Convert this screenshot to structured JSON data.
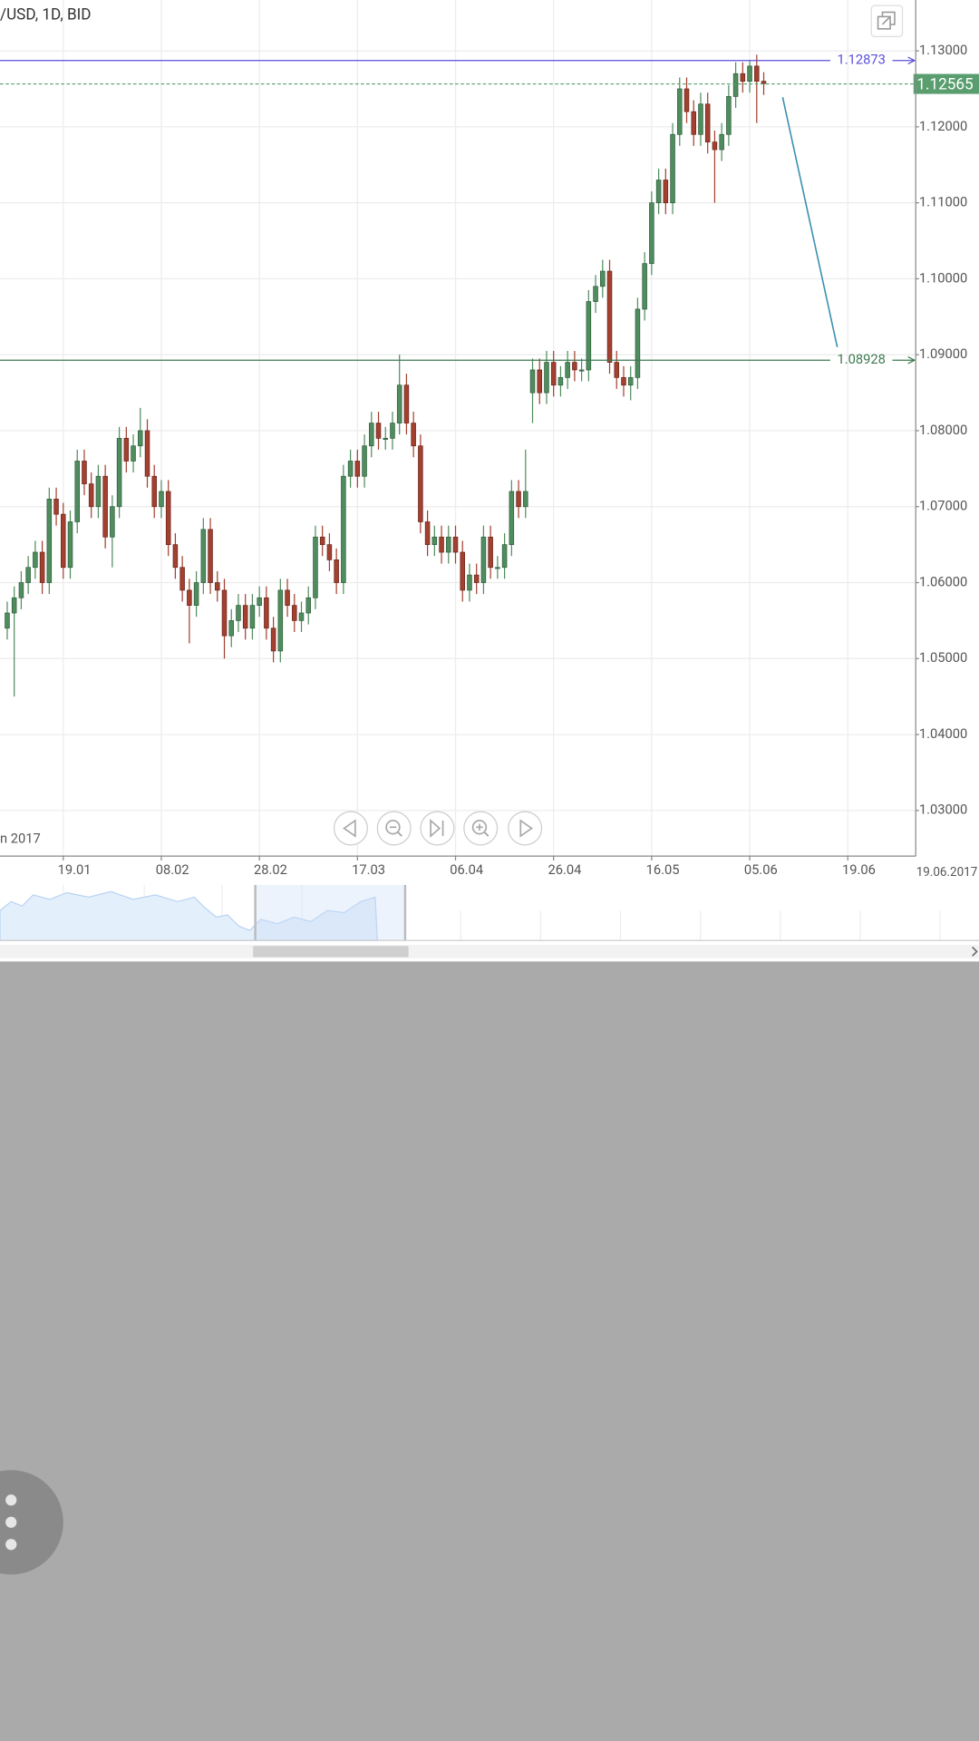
{
  "chart_data": {
    "type": "candlestick",
    "title": "/USD, 1D, BID",
    "period_label": "n 2017",
    "crosshair_date": "19.06.2017",
    "x": [
      -8,
      -7,
      -6,
      -5,
      -4,
      -3,
      -2,
      -1,
      0,
      1,
      2,
      3,
      4,
      5,
      6,
      7,
      8,
      9,
      10,
      11,
      12,
      13,
      14,
      15,
      16,
      17,
      18,
      19,
      20,
      21,
      22,
      23,
      24,
      25,
      26,
      27,
      28,
      29,
      30,
      31,
      32,
      33,
      34,
      35,
      36,
      37,
      38,
      39,
      40,
      41,
      42,
      43,
      44,
      45,
      46,
      47,
      48,
      49,
      50,
      51,
      52,
      53,
      54,
      55,
      56,
      57,
      58,
      59,
      60,
      61,
      62,
      63,
      64,
      65,
      66,
      67,
      68,
      69,
      70,
      71,
      72,
      73,
      74,
      75,
      76,
      77,
      78,
      79,
      80,
      81,
      82,
      83,
      84,
      85,
      86,
      87,
      88,
      89,
      90,
      91,
      92,
      93,
      94,
      95,
      96,
      97,
      98,
      99,
      100
    ],
    "open": [
      1.054,
      1.056,
      1.058,
      1.06,
      1.062,
      1.064,
      1.06,
      1.071,
      1.069,
      1.062,
      1.068,
      1.076,
      1.073,
      1.07,
      1.074,
      1.066,
      1.07,
      1.079,
      1.076,
      1.078,
      1.08,
      1.074,
      1.07,
      1.072,
      1.065,
      1.062,
      1.059,
      1.057,
      1.06,
      1.067,
      1.06,
      1.059,
      1.053,
      1.055,
      1.057,
      1.054,
      1.057,
      1.058,
      1.054,
      1.051,
      1.059,
      1.057,
      1.055,
      1.056,
      1.058,
      1.066,
      1.065,
      1.063,
      1.06,
      1.074,
      1.076,
      1.074,
      1.078,
      1.081,
      1.079,
      1.079,
      1.081,
      1.086,
      1.081,
      1.078,
      1.068,
      1.065,
      1.066,
      1.064,
      1.066,
      1.064,
      1.059,
      1.061,
      1.06,
      1.066,
      1.062,
      1.062,
      1.065,
      1.072,
      1.07,
      1.085,
      1.088,
      1.085,
      1.089,
      1.086,
      1.087,
      1.089,
      1.088,
      1.088,
      1.097,
      1.099,
      1.101,
      1.089,
      1.087,
      1.086,
      1.087,
      1.096,
      1.102,
      1.11,
      1.113,
      1.11,
      1.119,
      1.125,
      1.122,
      1.119,
      1.123,
      1.118,
      1.117,
      1.119,
      1.124,
      1.127,
      1.126,
      1.128,
      1.126
    ],
    "high": [
      1.0575,
      1.0595,
      1.0615,
      1.0635,
      1.0655,
      1.0655,
      1.0725,
      1.0725,
      1.0705,
      1.0695,
      1.0775,
      1.0775,
      1.0745,
      1.0755,
      1.0755,
      1.0715,
      1.0805,
      1.0805,
      1.0795,
      1.083,
      1.0815,
      1.0755,
      1.0735,
      1.0735,
      1.0665,
      1.0635,
      1.0605,
      1.0615,
      1.0685,
      1.0685,
      1.0615,
      1.0605,
      1.0565,
      1.0585,
      1.0585,
      1.0585,
      1.0595,
      1.0595,
      1.0555,
      1.0605,
      1.0605,
      1.0585,
      1.0575,
      1.0595,
      1.0675,
      1.0675,
      1.0665,
      1.0645,
      1.0755,
      1.0775,
      1.0775,
      1.0795,
      1.0825,
      1.0825,
      1.0805,
      1.0825,
      1.09,
      1.0875,
      1.0825,
      1.0795,
      1.0695,
      1.0675,
      1.0675,
      1.0675,
      1.0675,
      1.0655,
      1.0625,
      1.0625,
      1.0675,
      1.0675,
      1.0635,
      1.0665,
      1.0735,
      1.0735,
      1.0775,
      1.0895,
      1.0895,
      1.0905,
      1.0905,
      1.0885,
      1.0905,
      1.0905,
      1.0895,
      1.0985,
      1.1005,
      1.1025,
      1.1025,
      1.0905,
      1.0885,
      1.0885,
      1.0975,
      1.1035,
      1.1115,
      1.1145,
      1.1145,
      1.1205,
      1.1265,
      1.1265,
      1.1235,
      1.1245,
      1.1245,
      1.1195,
      1.1205,
      1.1255,
      1.1285,
      1.1285,
      1.1287,
      1.1295,
      1.1272
    ],
    "low": [
      1.0525,
      1.045,
      1.0565,
      1.0585,
      1.0605,
      1.0585,
      1.0585,
      1.0675,
      1.0605,
      1.0605,
      1.0665,
      1.0715,
      1.0685,
      1.0685,
      1.0645,
      1.062,
      1.0685,
      1.0745,
      1.0745,
      1.0765,
      1.0725,
      1.0685,
      1.0685,
      1.0635,
      1.0605,
      1.0575,
      1.052,
      1.0555,
      1.0585,
      1.0585,
      1.0575,
      1.05,
      1.0515,
      1.0535,
      1.0525,
      1.0525,
      1.0555,
      1.0525,
      1.0495,
      1.0495,
      1.0555,
      1.0535,
      1.0535,
      1.0545,
      1.0565,
      1.0635,
      1.0615,
      1.0585,
      1.0585,
      1.0725,
      1.0725,
      1.0725,
      1.0765,
      1.0775,
      1.0775,
      1.0775,
      1.0795,
      1.0795,
      1.0765,
      1.0665,
      1.0635,
      1.0635,
      1.0625,
      1.0625,
      1.0625,
      1.0575,
      1.0575,
      1.0585,
      1.0585,
      1.0605,
      1.0605,
      1.0605,
      1.0635,
      1.0685,
      1.0685,
      1.081,
      1.0835,
      1.0835,
      1.0845,
      1.0845,
      1.0855,
      1.0865,
      1.0865,
      1.0865,
      1.0955,
      1.0975,
      1.0875,
      1.0855,
      1.0845,
      1.084,
      1.0855,
      1.0945,
      1.1005,
      1.1085,
      1.1085,
      1.1085,
      1.1175,
      1.1205,
      1.1175,
      1.1175,
      1.1165,
      1.11,
      1.1155,
      1.1175,
      1.1225,
      1.1245,
      1.1245,
      1.1205,
      1.1242
    ],
    "close": [
      1.056,
      1.058,
      1.06,
      1.062,
      1.064,
      1.06,
      1.071,
      1.069,
      1.062,
      1.068,
      1.076,
      1.073,
      1.07,
      1.074,
      1.066,
      1.07,
      1.079,
      1.076,
      1.078,
      1.08,
      1.074,
      1.07,
      1.072,
      1.065,
      1.062,
      1.059,
      1.057,
      1.06,
      1.067,
      1.06,
      1.059,
      1.053,
      1.055,
      1.057,
      1.054,
      1.057,
      1.058,
      1.054,
      1.051,
      1.059,
      1.057,
      1.055,
      1.056,
      1.058,
      1.066,
      1.065,
      1.063,
      1.06,
      1.074,
      1.076,
      1.074,
      1.078,
      1.081,
      1.079,
      1.079,
      1.081,
      1.086,
      1.081,
      1.078,
      1.068,
      1.065,
      1.066,
      1.064,
      1.066,
      1.064,
      1.059,
      1.061,
      1.06,
      1.066,
      1.062,
      1.062,
      1.065,
      1.072,
      1.07,
      1.072,
      1.088,
      1.085,
      1.089,
      1.086,
      1.087,
      1.089,
      1.088,
      1.088,
      1.097,
      1.099,
      1.101,
      1.089,
      1.087,
      1.086,
      1.087,
      1.096,
      1.102,
      1.11,
      1.113,
      1.11,
      1.119,
      1.125,
      1.122,
      1.119,
      1.123,
      1.118,
      1.117,
      1.119,
      1.124,
      1.127,
      1.126,
      1.128,
      1.126,
      1.1257
    ],
    "up_color": "#4f8d5f",
    "down_color": "#a3402f",
    "xlim": [
      -9.03,
      121.7
    ],
    "xticks": [
      {
        "value": 0,
        "label": "19.01"
      },
      {
        "value": 14,
        "label": "08.02"
      },
      {
        "value": 28,
        "label": "28.02"
      },
      {
        "value": 42,
        "label": "17.03"
      },
      {
        "value": 56,
        "label": "06.04"
      },
      {
        "value": 70,
        "label": "26.04"
      },
      {
        "value": 84,
        "label": "16.05"
      },
      {
        "value": 98,
        "label": "05.06"
      },
      {
        "value": 112,
        "label": "19.06"
      }
    ],
    "ylim": [
      1.024,
      1.1367
    ],
    "yticks": [
      {
        "value": 1.03,
        "label": "1.03000"
      },
      {
        "value": 1.04,
        "label": "1.04000"
      },
      {
        "value": 1.05,
        "label": "1.05000"
      },
      {
        "value": 1.06,
        "label": "1.06000"
      },
      {
        "value": 1.07,
        "label": "1.07000"
      },
      {
        "value": 1.08,
        "label": "1.08000"
      },
      {
        "value": 1.09,
        "label": "1.09000"
      },
      {
        "value": 1.1,
        "label": "1.10000"
      },
      {
        "value": 1.11,
        "label": "1.11000"
      },
      {
        "value": 1.12,
        "label": "1.12000"
      },
      {
        "value": 1.13,
        "label": "1.13000"
      }
    ],
    "grid": true,
    "horizontal_lines": [
      {
        "value": 1.12873,
        "label": "1.12873",
        "color": "#5a4fd6"
      },
      {
        "value": 1.08928,
        "label": "1.08928",
        "color": "#3d7a4f"
      }
    ],
    "last_price": {
      "value": 1.12565,
      "label": "1.12565",
      "color": "#5a9e6f"
    },
    "trend_line": {
      "x": [
        102.7,
        110.5
      ],
      "y": [
        1.1239,
        1.091
      ],
      "color": "#3a8fb0"
    }
  }
}
